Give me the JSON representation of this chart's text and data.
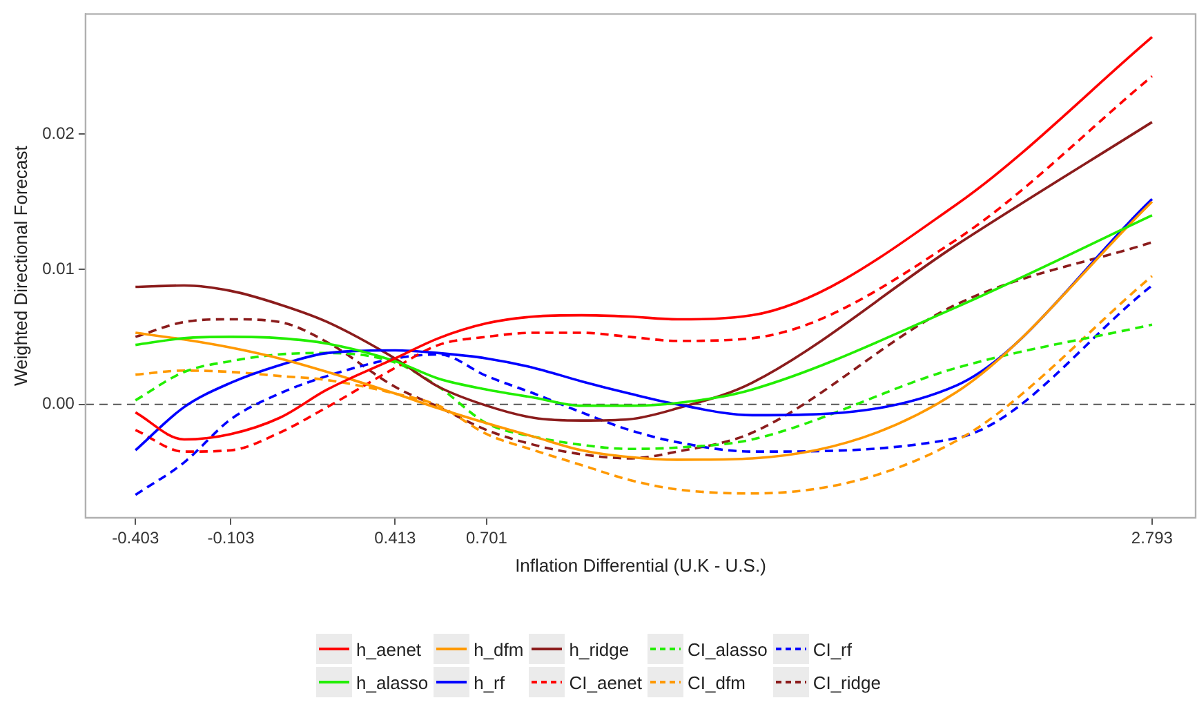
{
  "chart_data": {
    "type": "line",
    "xlabel": "Inflation Differential (U.K - U.S.)",
    "ylabel": "Weighted Directional Forecast",
    "x": [
      -0.403,
      -0.25,
      -0.103,
      0.05,
      0.2,
      0.413,
      0.55,
      0.701,
      0.85,
      1.0,
      1.15,
      1.3,
      1.536,
      2.178,
      2.793
    ],
    "xlim": [
      -0.56,
      2.93
    ],
    "xticks": [
      -0.403,
      -0.103,
      0.413,
      0.701,
      2.793
    ],
    "ylim": [
      -0.0084,
      0.0289
    ],
    "yticks": [
      {
        "value": 0,
        "label": "0.00"
      },
      {
        "value": 0.01,
        "label": "0.01"
      },
      {
        "value": 0.02,
        "label": "0.02"
      }
    ],
    "grid": false,
    "legend": "bottom",
    "marker": "none",
    "ref_lines": [
      {
        "axis": "y",
        "value": 0,
        "color": "#555555",
        "line_style": "dashed"
      }
    ],
    "series": [
      {
        "name": "h_aenet",
        "color": "#ff0000",
        "line_style": "solid",
        "values": [
          -0.0006,
          -0.0026,
          -0.0022,
          -0.001,
          0.0011,
          0.0034,
          0.0049,
          0.006,
          0.0065,
          0.0066,
          0.0065,
          0.0063,
          0.0066,
          0.0148,
          0.0272
        ]
      },
      {
        "name": "h_alasso",
        "color": "#22ee00",
        "line_style": "solid",
        "values": [
          0.0044,
          0.0049,
          0.005,
          0.0049,
          0.0045,
          0.0032,
          0.0019,
          0.0011,
          0.0005,
          -0.0001,
          -0.0001,
          0.0001,
          0.0011,
          0.0072,
          0.014
        ]
      },
      {
        "name": "h_dfm",
        "color": "#ff9900",
        "line_style": "solid",
        "values": [
          0.0053,
          0.0048,
          0.0042,
          0.0034,
          0.0024,
          0.0008,
          -0.0003,
          -0.0014,
          -0.0024,
          -0.0034,
          -0.0039,
          -0.0041,
          -0.004,
          0.0009,
          0.015
        ]
      },
      {
        "name": "h_rf",
        "color": "#0000ff",
        "line_style": "solid",
        "values": [
          -0.0034,
          -0.0002,
          0.0016,
          0.0029,
          0.0038,
          0.004,
          0.0038,
          0.0034,
          0.0027,
          0.0017,
          0.0008,
          0.0,
          -0.0008,
          0.0014,
          0.0152
        ]
      },
      {
        "name": "h_ridge",
        "color": "#8b1c1c",
        "line_style": "solid",
        "values": [
          0.0087,
          0.0088,
          0.0084,
          0.0074,
          0.0061,
          0.0034,
          0.0013,
          -0.0001,
          -0.001,
          -0.0012,
          -0.0011,
          -0.0003,
          0.0016,
          0.0118,
          0.0209
        ]
      },
      {
        "name": "CI_aenet",
        "color": "#ff0000",
        "line_style": "dashed",
        "values": [
          -0.0019,
          -0.0035,
          -0.0034,
          -0.0021,
          -0.0002,
          0.0027,
          0.0044,
          0.005,
          0.0053,
          0.0053,
          0.005,
          0.0047,
          0.0049,
          0.0122,
          0.0243
        ]
      },
      {
        "name": "CI_alasso",
        "color": "#22ee00",
        "line_style": "dashed",
        "values": [
          0.0003,
          0.0024,
          0.0032,
          0.0037,
          0.0038,
          0.0031,
          0.0013,
          -0.0014,
          -0.0024,
          -0.003,
          -0.0033,
          -0.0032,
          -0.0026,
          0.0027,
          0.0059
        ]
      },
      {
        "name": "CI_dfm",
        "color": "#ff9900",
        "line_style": "dashed",
        "values": [
          0.0022,
          0.0025,
          0.0024,
          0.0021,
          0.0018,
          0.0008,
          -0.0001,
          -0.0022,
          -0.0034,
          -0.0045,
          -0.0056,
          -0.0063,
          -0.0066,
          -0.0027,
          0.0095
        ]
      },
      {
        "name": "CI_rf",
        "color": "#0000ff",
        "line_style": "dashed",
        "values": [
          -0.0067,
          -0.0043,
          -0.0011,
          0.0008,
          0.0021,
          0.0034,
          0.0037,
          0.0021,
          0.0008,
          -0.0006,
          -0.0019,
          -0.0028,
          -0.0035,
          -0.0025,
          0.0088
        ]
      },
      {
        "name": "CI_ridge",
        "color": "#8b1c1c",
        "line_style": "dashed",
        "values": [
          0.005,
          0.0061,
          0.0063,
          0.0061,
          0.0046,
          0.0013,
          -0.0002,
          -0.0019,
          -0.003,
          -0.0037,
          -0.004,
          -0.0035,
          -0.0021,
          0.0074,
          0.012
        ]
      }
    ]
  }
}
